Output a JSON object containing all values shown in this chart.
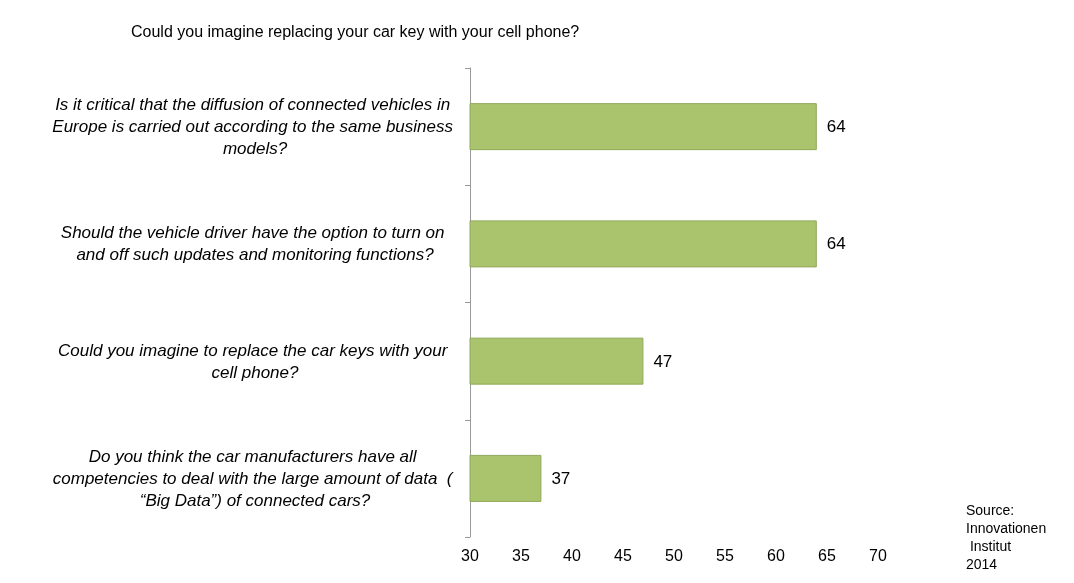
{
  "chart_data": {
    "type": "bar",
    "orientation": "horizontal",
    "title": "Could you imagine replacing your car key with your cell phone?",
    "categories": [
      "Is it critical that the diffusion of connected vehicles in Europe is carried out according to the same business models?",
      "Should the vehicle driver have the option to turn on and off such updates and monitoring functions?",
      "Could you imagine to replace the car keys with your cell phone?",
      "Do you think the car manufacturers have all competencies to deal with the large amount of data  ( “Big Data”) of connected cars?"
    ],
    "values": [
      64,
      64,
      47,
      37
    ],
    "color": "#a9c46c",
    "data_labels": true,
    "xlim": [
      30,
      70
    ],
    "xticks": [
      30,
      35,
      40,
      45,
      50,
      55,
      60,
      65,
      70
    ],
    "grid": false,
    "annotations": [
      "Source: Innovationen Institut 2014"
    ]
  }
}
